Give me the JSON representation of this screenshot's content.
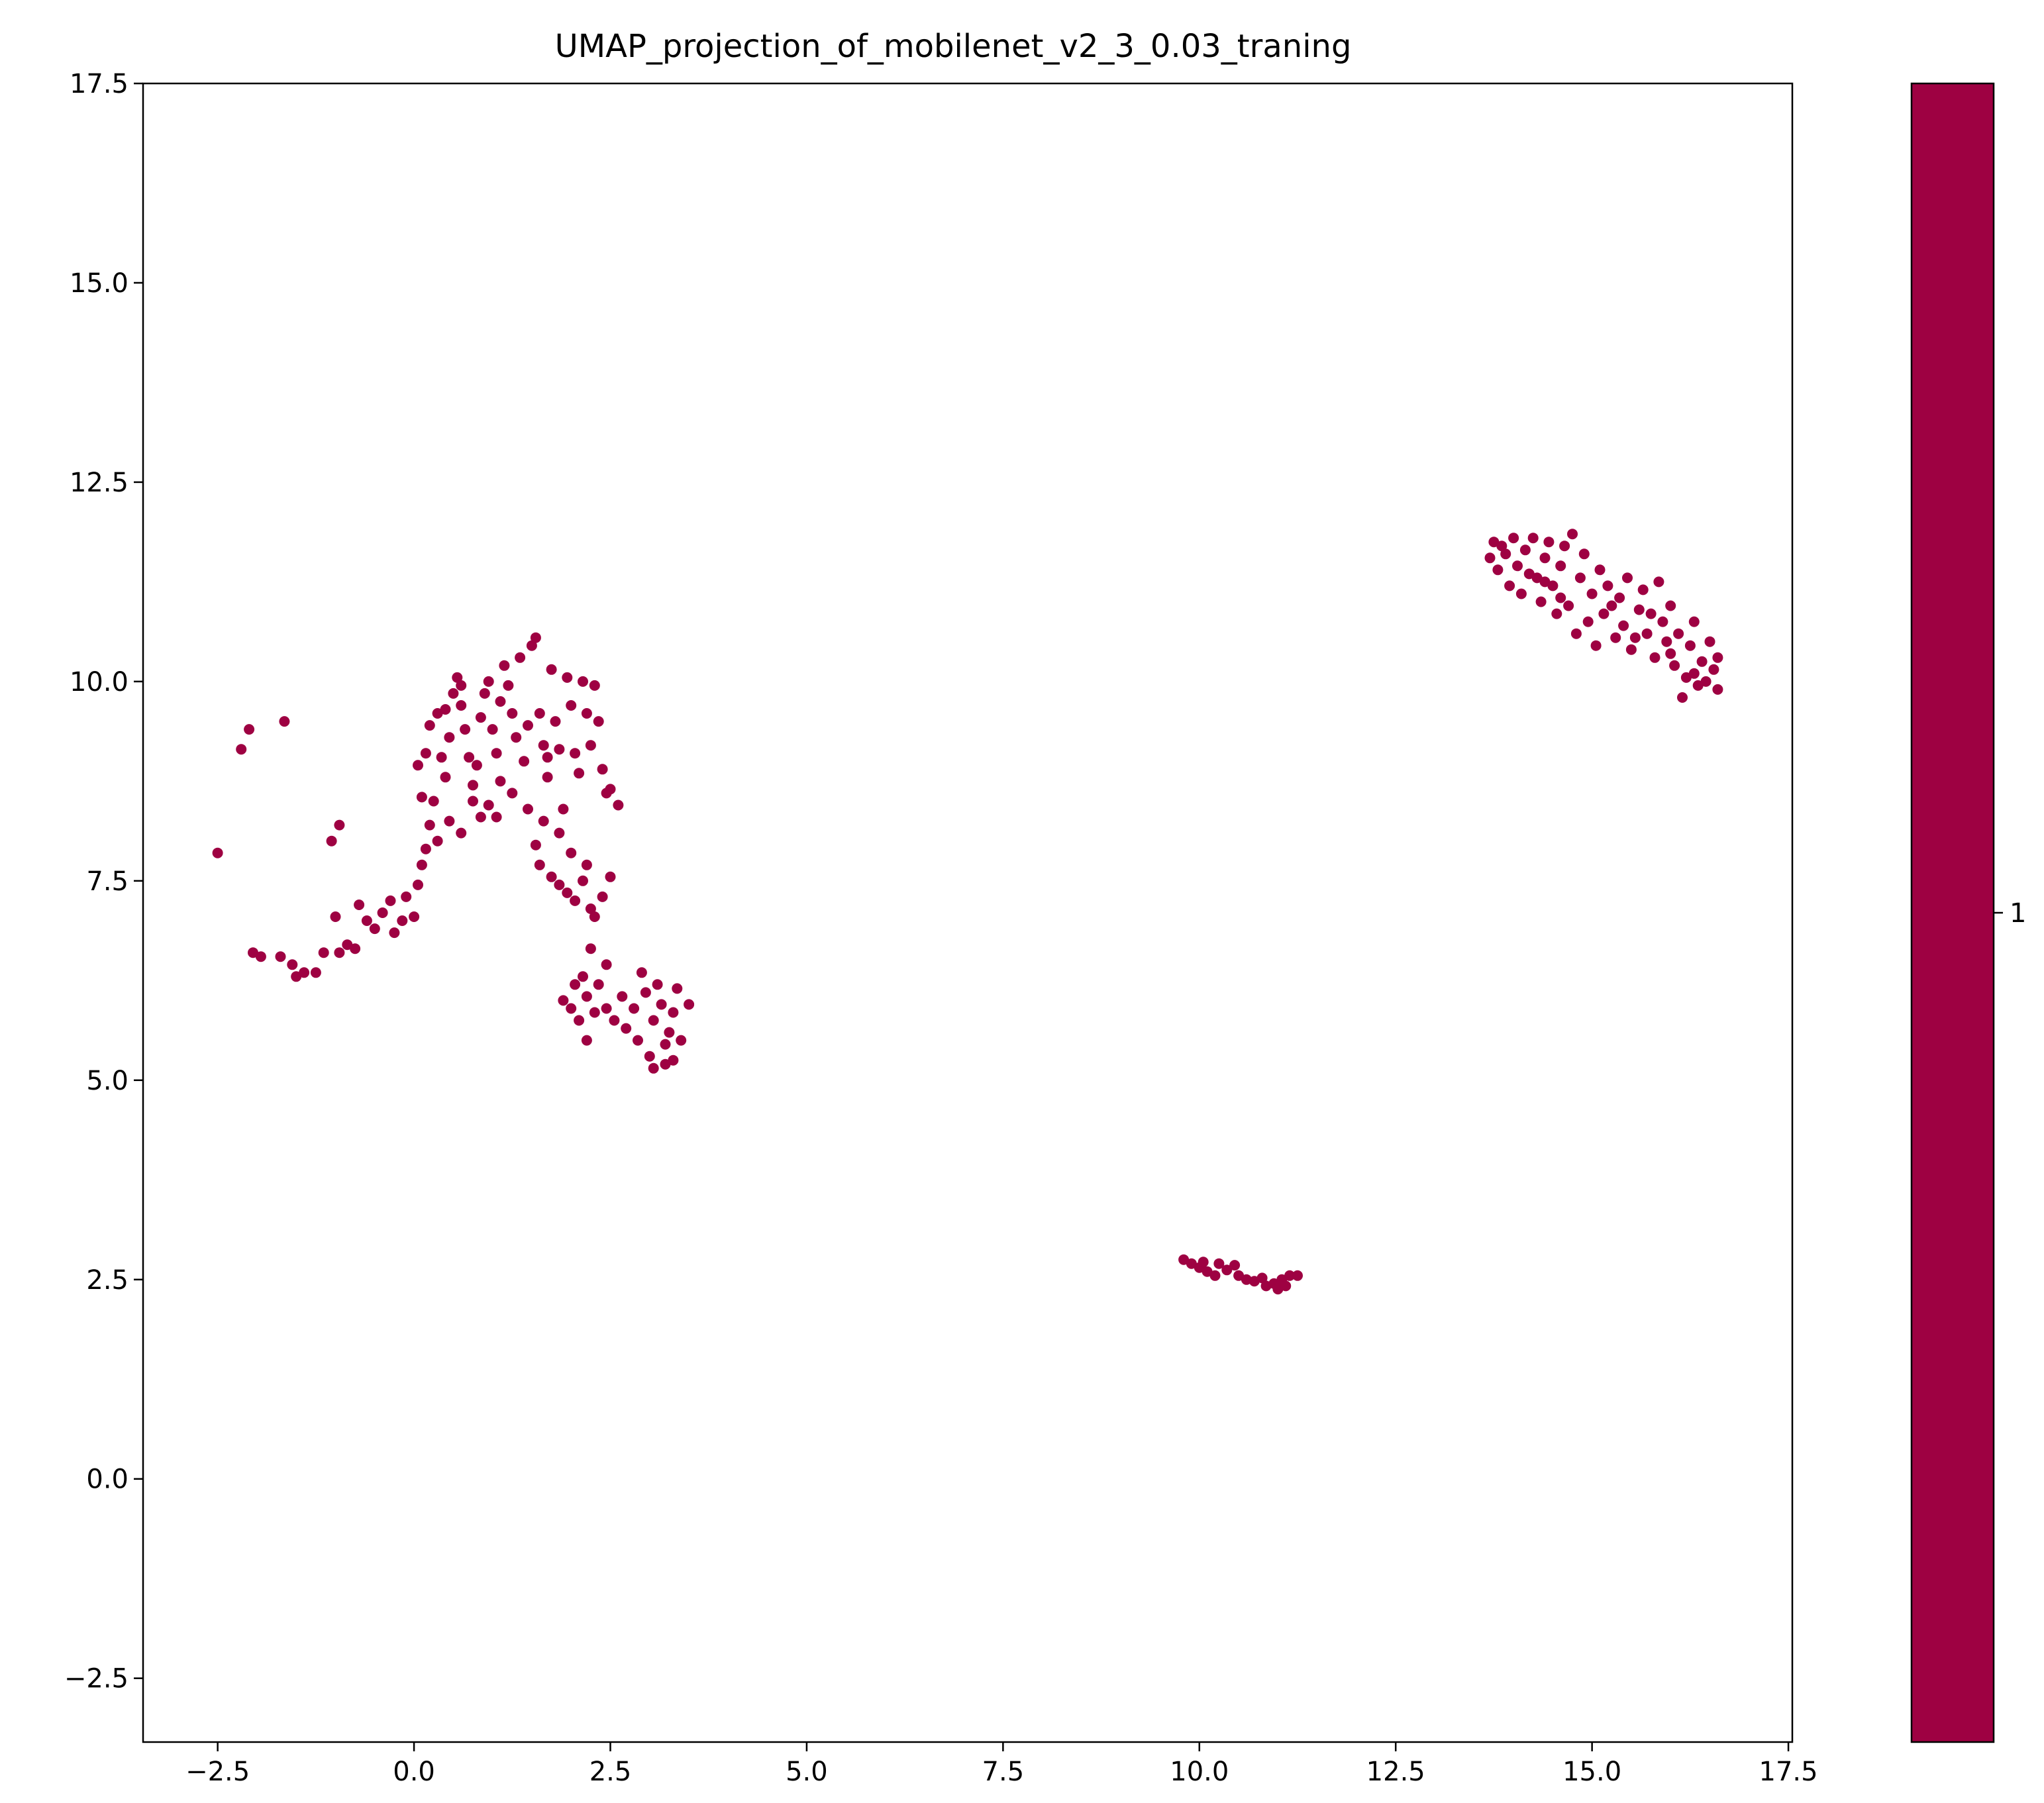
{
  "chart_data": {
    "type": "scatter",
    "title": "UMAP_projection_of_mobilenet_v2_3_0.03_traning",
    "xlabel": "",
    "ylabel": "",
    "xlim": [
      -3.45,
      17.55
    ],
    "ylim": [
      -3.3,
      17.5
    ],
    "x_ticks": [
      "−2.5",
      "0.0",
      "2.5",
      "5.0",
      "7.5",
      "10.0",
      "12.5",
      "15.0",
      "17.5"
    ],
    "x_tick_values": [
      -2.5,
      0.0,
      2.5,
      5.0,
      7.5,
      10.0,
      12.5,
      15.0,
      17.5
    ],
    "y_ticks": [
      "−2.5",
      "0.0",
      "2.5",
      "5.0",
      "7.5",
      "10.0",
      "12.5",
      "15.0",
      "17.5"
    ],
    "y_tick_values": [
      -2.5,
      0.0,
      2.5,
      5.0,
      7.5,
      10.0,
      12.5,
      15.0,
      17.5
    ],
    "grid": false,
    "marker_color": "#9e0142",
    "colorbar": {
      "ticks": [
        "1"
      ],
      "color": "#9e0142"
    },
    "series": [
      {
        "values": [
          [
            -2.5,
            7.85
          ],
          [
            -2.2,
            9.15
          ],
          [
            -2.1,
            9.4
          ],
          [
            -1.65,
            9.5
          ],
          [
            -1.05,
            8.0
          ],
          [
            -0.95,
            8.2
          ],
          [
            -2.05,
            6.6
          ],
          [
            -1.95,
            6.55
          ],
          [
            -1.7,
            6.55
          ],
          [
            -1.55,
            6.45
          ],
          [
            -1.5,
            6.3
          ],
          [
            -1.4,
            6.35
          ],
          [
            -1.25,
            6.35
          ],
          [
            -1.15,
            6.6
          ],
          [
            -1.0,
            7.05
          ],
          [
            -0.95,
            6.6
          ],
          [
            -0.85,
            6.7
          ],
          [
            -0.75,
            6.65
          ],
          [
            -0.7,
            7.2
          ],
          [
            -0.6,
            7.0
          ],
          [
            -0.5,
            6.9
          ],
          [
            -0.4,
            7.1
          ],
          [
            -0.3,
            7.25
          ],
          [
            -0.25,
            6.85
          ],
          [
            -0.15,
            7.0
          ],
          [
            -0.1,
            7.3
          ],
          [
            0.0,
            7.05
          ],
          [
            0.05,
            7.45
          ],
          [
            0.1,
            7.7
          ],
          [
            0.15,
            7.9
          ],
          [
            0.2,
            8.2
          ],
          [
            0.25,
            8.5
          ],
          [
            0.1,
            8.55
          ],
          [
            0.05,
            8.95
          ],
          [
            0.15,
            9.1
          ],
          [
            0.2,
            9.45
          ],
          [
            0.3,
            9.6
          ],
          [
            0.35,
            9.05
          ],
          [
            0.4,
            8.8
          ],
          [
            0.45,
            9.3
          ],
          [
            0.5,
            9.85
          ],
          [
            0.55,
            10.05
          ],
          [
            0.6,
            9.7
          ],
          [
            0.65,
            9.4
          ],
          [
            0.7,
            9.05
          ],
          [
            0.75,
            8.7
          ],
          [
            0.8,
            8.95
          ],
          [
            0.85,
            9.55
          ],
          [
            0.9,
            9.85
          ],
          [
            0.95,
            10.0
          ],
          [
            1.0,
            9.4
          ],
          [
            1.05,
            9.1
          ],
          [
            1.1,
            8.75
          ],
          [
            1.15,
            10.2
          ],
          [
            1.2,
            9.95
          ],
          [
            1.25,
            9.6
          ],
          [
            1.3,
            9.3
          ],
          [
            1.35,
            10.3
          ],
          [
            1.4,
            9.0
          ],
          [
            1.45,
            9.45
          ],
          [
            1.5,
            10.45
          ],
          [
            1.55,
            10.55
          ],
          [
            1.6,
            9.6
          ],
          [
            1.65,
            9.2
          ],
          [
            1.7,
            8.8
          ],
          [
            1.75,
            10.15
          ],
          [
            1.8,
            9.5
          ],
          [
            1.85,
            9.15
          ],
          [
            1.9,
            8.4
          ],
          [
            1.95,
            10.05
          ],
          [
            2.0,
            9.7
          ],
          [
            2.05,
            9.1
          ],
          [
            2.1,
            8.85
          ],
          [
            2.15,
            10.0
          ],
          [
            2.2,
            9.6
          ],
          [
            2.25,
            9.2
          ],
          [
            2.3,
            9.95
          ],
          [
            2.35,
            9.5
          ],
          [
            2.4,
            8.9
          ],
          [
            2.45,
            8.6
          ],
          [
            2.5,
            8.65
          ],
          [
            2.6,
            8.45
          ],
          [
            0.3,
            8.0
          ],
          [
            0.45,
            8.25
          ],
          [
            0.6,
            8.1
          ],
          [
            0.75,
            8.5
          ],
          [
            0.85,
            8.3
          ],
          [
            0.95,
            8.45
          ],
          [
            1.05,
            8.3
          ],
          [
            1.25,
            8.6
          ],
          [
            1.45,
            8.4
          ],
          [
            1.55,
            7.95
          ],
          [
            1.6,
            7.7
          ],
          [
            1.75,
            7.55
          ],
          [
            1.85,
            7.45
          ],
          [
            1.95,
            7.35
          ],
          [
            2.05,
            7.25
          ],
          [
            2.15,
            7.5
          ],
          [
            2.25,
            7.15
          ],
          [
            2.3,
            7.05
          ],
          [
            2.4,
            7.3
          ],
          [
            2.5,
            7.55
          ],
          [
            1.65,
            8.25
          ],
          [
            1.85,
            8.1
          ],
          [
            2.0,
            7.85
          ],
          [
            2.2,
            7.7
          ],
          [
            0.4,
            9.65
          ],
          [
            0.6,
            9.95
          ],
          [
            1.1,
            9.75
          ],
          [
            1.7,
            9.05
          ],
          [
            1.9,
            6.0
          ],
          [
            2.0,
            5.9
          ],
          [
            2.05,
            6.2
          ],
          [
            2.1,
            5.75
          ],
          [
            2.15,
            6.3
          ],
          [
            2.2,
            6.05
          ],
          [
            2.25,
            6.65
          ],
          [
            2.3,
            5.85
          ],
          [
            2.35,
            6.2
          ],
          [
            2.45,
            6.45
          ],
          [
            2.45,
            5.9
          ],
          [
            2.2,
            5.5
          ],
          [
            2.55,
            5.75
          ],
          [
            2.65,
            6.05
          ],
          [
            2.7,
            5.65
          ],
          [
            2.8,
            5.9
          ],
          [
            2.85,
            5.5
          ],
          [
            2.9,
            6.35
          ],
          [
            2.95,
            6.1
          ],
          [
            3.0,
            5.3
          ],
          [
            3.05,
            5.75
          ],
          [
            3.1,
            6.2
          ],
          [
            3.15,
            5.95
          ],
          [
            3.2,
            5.45
          ],
          [
            3.25,
            5.6
          ],
          [
            3.3,
            5.25
          ],
          [
            3.3,
            5.85
          ],
          [
            3.35,
            6.15
          ],
          [
            3.4,
            5.5
          ],
          [
            3.5,
            5.95
          ],
          [
            3.05,
            5.15
          ],
          [
            3.2,
            5.2
          ],
          [
            9.8,
            2.75
          ],
          [
            9.9,
            2.7
          ],
          [
            10.0,
            2.65
          ],
          [
            10.05,
            2.72
          ],
          [
            10.1,
            2.6
          ],
          [
            10.2,
            2.55
          ],
          [
            10.25,
            2.7
          ],
          [
            10.35,
            2.62
          ],
          [
            10.45,
            2.68
          ],
          [
            10.5,
            2.55
          ],
          [
            10.6,
            2.5
          ],
          [
            10.7,
            2.48
          ],
          [
            10.8,
            2.52
          ],
          [
            10.85,
            2.42
          ],
          [
            10.95,
            2.45
          ],
          [
            11.0,
            2.38
          ],
          [
            11.05,
            2.5
          ],
          [
            11.1,
            2.42
          ],
          [
            11.15,
            2.55
          ],
          [
            11.25,
            2.55
          ],
          [
            13.7,
            11.55
          ],
          [
            13.75,
            11.75
          ],
          [
            13.8,
            11.4
          ],
          [
            13.9,
            11.6
          ],
          [
            13.95,
            11.2
          ],
          [
            14.0,
            11.8
          ],
          [
            14.05,
            11.45
          ],
          [
            14.1,
            11.1
          ],
          [
            14.15,
            11.65
          ],
          [
            14.25,
            11.8
          ],
          [
            14.3,
            11.3
          ],
          [
            14.35,
            11.0
          ],
          [
            14.4,
            11.55
          ],
          [
            14.45,
            11.75
          ],
          [
            14.5,
            11.2
          ],
          [
            14.55,
            10.85
          ],
          [
            14.6,
            11.45
          ],
          [
            14.65,
            11.7
          ],
          [
            14.7,
            10.95
          ],
          [
            14.75,
            11.85
          ],
          [
            14.8,
            10.6
          ],
          [
            14.85,
            11.3
          ],
          [
            14.9,
            11.6
          ],
          [
            14.95,
            10.75
          ],
          [
            15.0,
            11.1
          ],
          [
            15.05,
            10.45
          ],
          [
            15.1,
            11.4
          ],
          [
            15.15,
            10.85
          ],
          [
            15.2,
            11.2
          ],
          [
            15.3,
            10.55
          ],
          [
            15.35,
            11.05
          ],
          [
            15.4,
            10.7
          ],
          [
            15.45,
            11.3
          ],
          [
            15.5,
            10.4
          ],
          [
            15.6,
            10.9
          ],
          [
            15.65,
            11.15
          ],
          [
            15.7,
            10.6
          ],
          [
            15.75,
            10.85
          ],
          [
            15.8,
            10.3
          ],
          [
            15.85,
            11.25
          ],
          [
            15.9,
            10.75
          ],
          [
            15.95,
            10.5
          ],
          [
            16.0,
            10.95
          ],
          [
            16.05,
            10.2
          ],
          [
            16.1,
            10.6
          ],
          [
            16.15,
            9.8
          ],
          [
            16.2,
            10.05
          ],
          [
            16.25,
            10.45
          ],
          [
            16.3,
            10.75
          ],
          [
            16.35,
            9.95
          ],
          [
            16.4,
            10.25
          ],
          [
            16.45,
            10.0
          ],
          [
            16.5,
            10.5
          ],
          [
            16.55,
            10.15
          ],
          [
            16.6,
            9.9
          ],
          [
            16.6,
            10.3
          ],
          [
            14.2,
            11.35
          ],
          [
            14.6,
            11.05
          ],
          [
            15.25,
            10.95
          ],
          [
            15.55,
            10.55
          ],
          [
            16.0,
            10.35
          ],
          [
            16.3,
            10.1
          ],
          [
            13.85,
            11.7
          ],
          [
            14.4,
            11.25
          ]
        ]
      }
    ]
  }
}
